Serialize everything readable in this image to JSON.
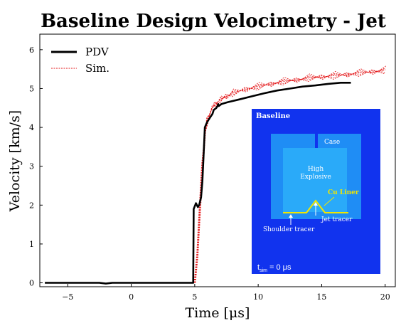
{
  "chart_data": {
    "type": "line",
    "title": "Baseline Design Velocimetry - Jet",
    "xlabel": "Time [μs]",
    "ylabel": "Velocity [km/s]",
    "xlim": [
      -7.2,
      20.8
    ],
    "ylim": [
      -0.1,
      6.4
    ],
    "xticks": [
      -5,
      0,
      5,
      10,
      15,
      20
    ],
    "yticks": [
      0,
      1,
      2,
      3,
      4,
      5,
      6
    ],
    "grid": false,
    "legend_position": "top-left",
    "series": [
      {
        "name": "PDV",
        "color": "#000000",
        "style": "solid",
        "x": [
          -6.8,
          -2.5,
          -2.0,
          -1.5,
          4.88,
          4.9,
          4.92,
          5.1,
          5.25,
          5.35,
          5.5,
          5.6,
          5.7,
          5.8,
          5.9,
          6.0,
          6.1,
          6.3,
          6.4,
          6.5,
          6.7,
          6.8,
          6.85,
          6.9,
          7.1,
          7.6,
          8.5,
          9.5,
          10.5,
          11.5,
          12.5,
          13.5,
          14.5,
          15.5,
          16.5,
          17.3
        ],
        "y": [
          0.0,
          0.0,
          -0.02,
          0.0,
          0.0,
          1.0,
          1.9,
          2.05,
          1.95,
          2.0,
          2.2,
          2.6,
          3.3,
          4.0,
          4.08,
          4.15,
          4.2,
          4.3,
          4.35,
          4.45,
          4.5,
          4.55,
          4.6,
          4.55,
          4.6,
          4.65,
          4.72,
          4.8,
          4.88,
          4.95,
          5.0,
          5.05,
          5.08,
          5.12,
          5.15,
          5.15
        ]
      },
      {
        "name": "Sim.",
        "color": "#e41a1c",
        "style": "dashed",
        "x": [
          5.0,
          5.2,
          5.4,
          5.6,
          5.8,
          6.0,
          6.3,
          6.6,
          7.0,
          7.5,
          8.0,
          9.0,
          10.0,
          11.0,
          12.0,
          13.0,
          14.0,
          15.0,
          16.0,
          17.0,
          18.0,
          19.0,
          20.0
        ],
        "y": [
          0.0,
          0.7,
          1.9,
          3.0,
          3.8,
          4.2,
          4.45,
          4.6,
          4.7,
          4.8,
          4.88,
          4.98,
          5.05,
          5.12,
          5.18,
          5.22,
          5.27,
          5.3,
          5.33,
          5.36,
          5.4,
          5.43,
          5.47
        ]
      }
    ],
    "inset": {
      "title": "Baseline",
      "labels": {
        "case": "Case",
        "high": "High",
        "explosive": "Explosive",
        "liner": "Cu Liner",
        "jet": "Jet tracer",
        "shoulder": "Shoulder tracer",
        "t_sym": "t",
        "t_sub": "sim",
        "t_val": " = 0 μs"
      },
      "colors": {
        "background": "#1133ee",
        "case": "#1f8df5",
        "explosive": "#2aaaf9",
        "liner": "#f2e600"
      }
    }
  }
}
